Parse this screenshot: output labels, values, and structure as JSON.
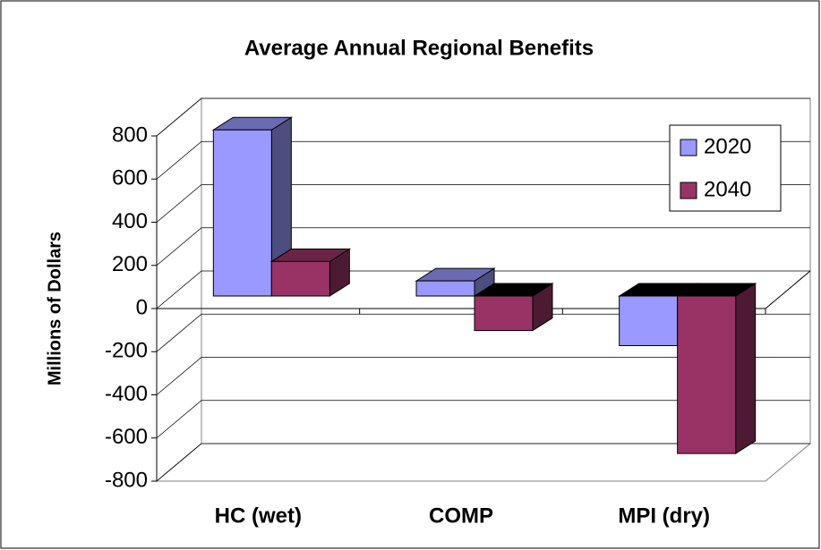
{
  "chart_data": {
    "type": "bar3d",
    "title": "Average Annual Regional Benefits",
    "y_label": "Millions of Dollars",
    "categories": [
      "HC (wet)",
      "COMP",
      "MPI (dry)"
    ],
    "series": [
      {
        "name": "2020",
        "color": "#9999ff",
        "values": [
          770,
          70,
          -230
        ]
      },
      {
        "name": "2040",
        "color": "#993366",
        "values": [
          160,
          -160,
          -730
        ]
      }
    ],
    "ylim": [
      -800,
      800
    ],
    "yticks": [
      -800,
      -600,
      -400,
      -200,
      0,
      200,
      400,
      600,
      800
    ],
    "grid": true
  }
}
